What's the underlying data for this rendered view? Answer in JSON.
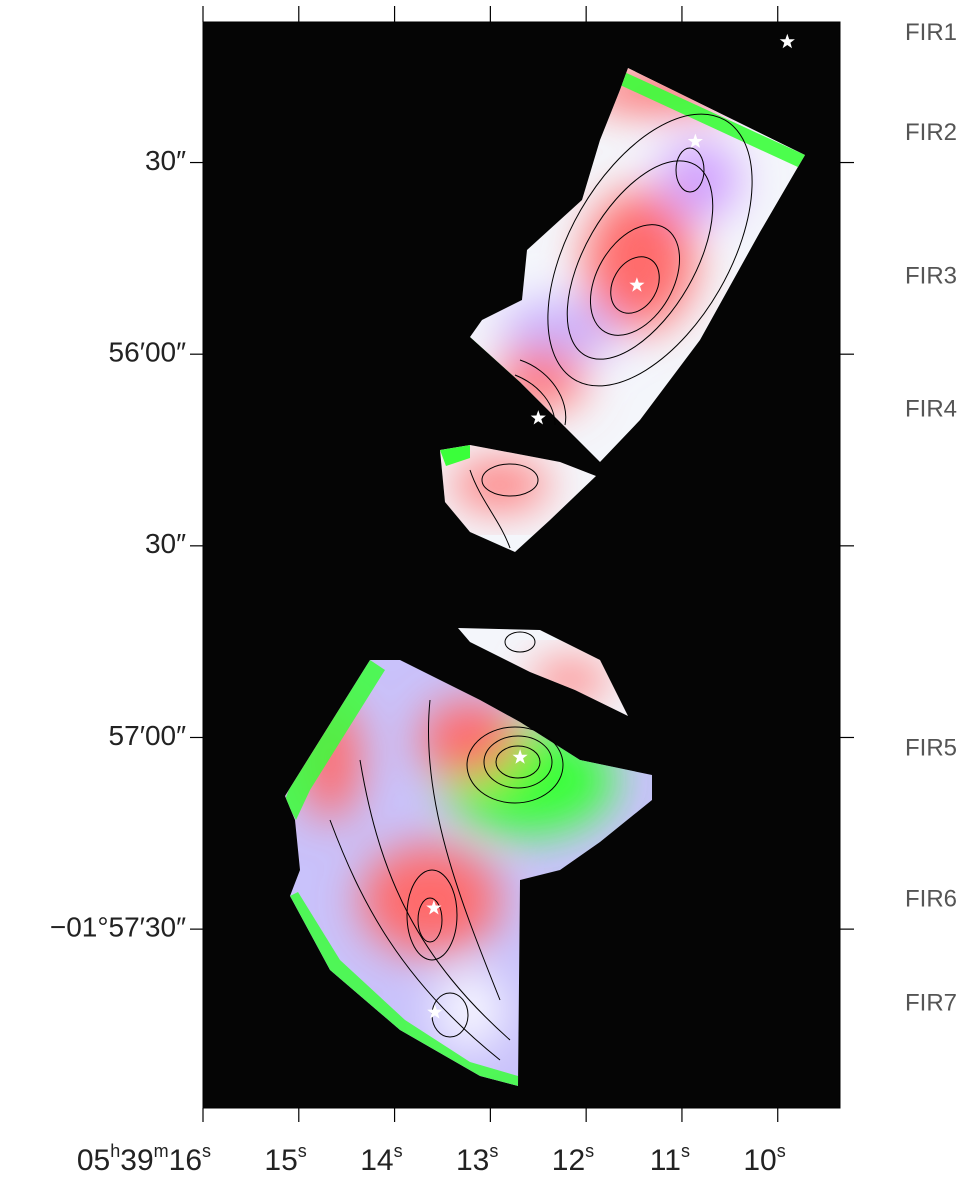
{
  "chart_data": {
    "type": "scatter",
    "xlim": [
      16,
      9.35
    ],
    "ylim": [
      -7078,
      -6908
    ],
    "xticks": [
      {
        "value": 16,
        "label": "05h39m16s"
      },
      {
        "value": 15,
        "label": "15s"
      },
      {
        "value": 14,
        "label": "14s"
      },
      {
        "value": 13,
        "label": "13s"
      },
      {
        "value": 12,
        "label": "12s"
      },
      {
        "value": 11,
        "label": "11s"
      },
      {
        "value": 10,
        "label": "10s"
      }
    ],
    "yticks": [
      {
        "value": -6930,
        "label": "30″"
      },
      {
        "value": -6960,
        "label": "56′00″"
      },
      {
        "value": -6990,
        "label": "30″"
      },
      {
        "value": -7020,
        "label": "57′00″"
      },
      {
        "value": -7050,
        "label": "−01°57′30″"
      }
    ],
    "x": [
      9.9,
      10.86,
      11.47,
      12.5,
      12.69,
      13.59,
      13.58
    ],
    "values": [
      -6911.1,
      -6926.7,
      -6949.2,
      -6970.0,
      -7023.1,
      -7046.7,
      -7063.0
    ],
    "point_labels": [
      "FIR1",
      "FIR2",
      "FIR3",
      "FIR4",
      "FIR5",
      "FIR6",
      "FIR7"
    ],
    "colors": [
      "#000000",
      "#ffffff",
      "#ffffff",
      "#ffffff",
      "#ffffff",
      "#ffffff",
      "#ffffff"
    ]
  }
}
